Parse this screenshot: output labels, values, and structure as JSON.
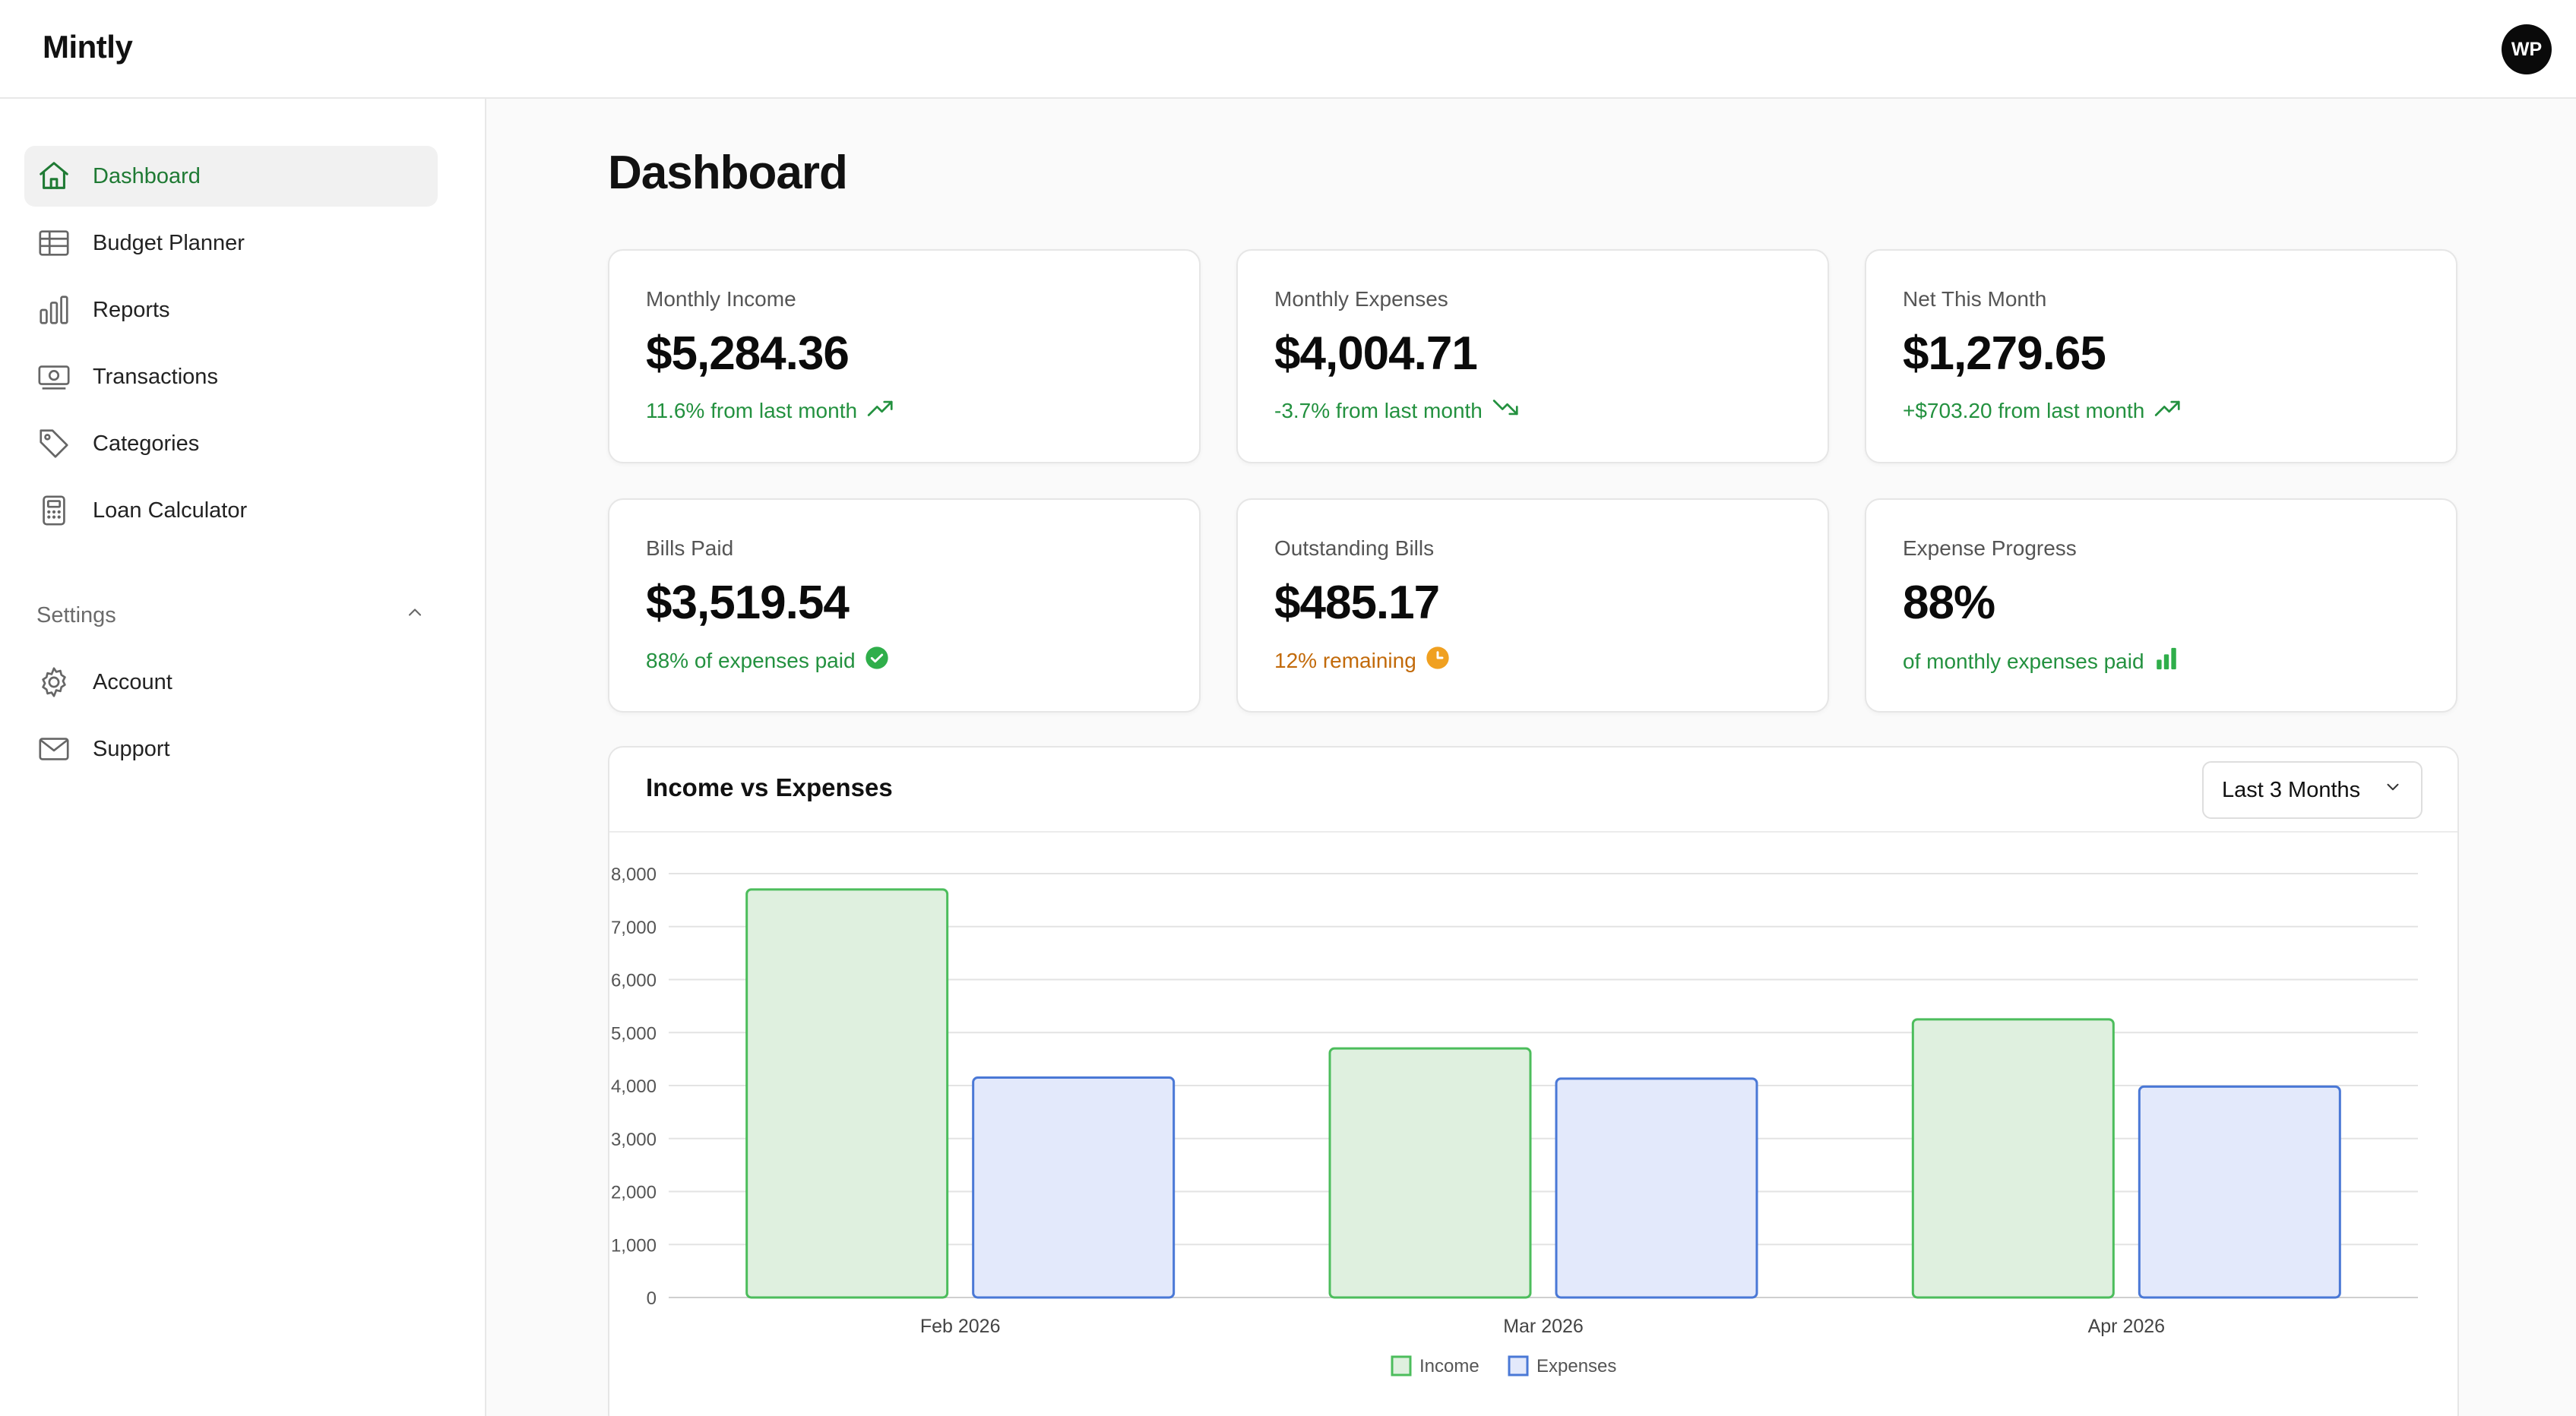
{
  "app": {
    "name": "Mintly",
    "user_initials": "WP"
  },
  "sidebar": {
    "items": [
      {
        "label": "Dashboard",
        "icon": "home-icon"
      },
      {
        "label": "Budget Planner",
        "icon": "table-icon"
      },
      {
        "label": "Reports",
        "icon": "bar-chart-icon"
      },
      {
        "label": "Transactions",
        "icon": "cash-icon"
      },
      {
        "label": "Categories",
        "icon": "tag-icon"
      },
      {
        "label": "Loan Calculator",
        "icon": "calculator-icon"
      }
    ],
    "settings_label": "Settings",
    "settings_items": [
      {
        "label": "Account",
        "icon": "gear-icon"
      },
      {
        "label": "Support",
        "icon": "mail-icon"
      }
    ]
  },
  "page": {
    "title": "Dashboard"
  },
  "cards": [
    {
      "label": "Monthly Income",
      "value": "$5,284.36",
      "sub": "11.6% from last month",
      "tone": "green",
      "icon": "trend-up-icon"
    },
    {
      "label": "Monthly Expenses",
      "value": "$4,004.71",
      "sub": "-3.7% from last month",
      "tone": "green",
      "icon": "trend-down-icon"
    },
    {
      "label": "Net This Month",
      "value": "$1,279.65",
      "sub": "+$703.20 from last month",
      "tone": "green",
      "icon": "trend-up-icon"
    },
    {
      "label": "Bills Paid",
      "value": "$3,519.54",
      "sub": "88% of expenses paid",
      "tone": "green",
      "icon": "check-circle-icon"
    },
    {
      "label": "Outstanding Bills",
      "value": "$485.17",
      "sub": "12% remaining",
      "tone": "orange",
      "icon": "clock-icon"
    },
    {
      "label": "Expense Progress",
      "value": "88%",
      "sub": "of monthly expenses paid",
      "tone": "green",
      "icon": "bars-icon"
    }
  ],
  "chart": {
    "title": "Income vs Expenses",
    "range": "Last 3 Months"
  },
  "chart_data": {
    "type": "bar",
    "categories": [
      "Feb 2026",
      "Mar 2026",
      "Apr 2026"
    ],
    "series": [
      {
        "name": "Income",
        "values": [
          7700,
          4700,
          5250
        ],
        "color": "#4cbd5c",
        "fill": "#dff0df"
      },
      {
        "name": "Expenses",
        "values": [
          4150,
          4130,
          3980
        ],
        "color": "#4a78d6",
        "fill": "#e3e9fb"
      }
    ],
    "ylim": [
      0,
      8000
    ],
    "yticks": [
      "0",
      "1,000",
      "2,000",
      "3,000",
      "4,000",
      "5,000",
      "6,000",
      "7,000",
      "8,000"
    ],
    "grid": true,
    "legend": "bottom-center"
  }
}
